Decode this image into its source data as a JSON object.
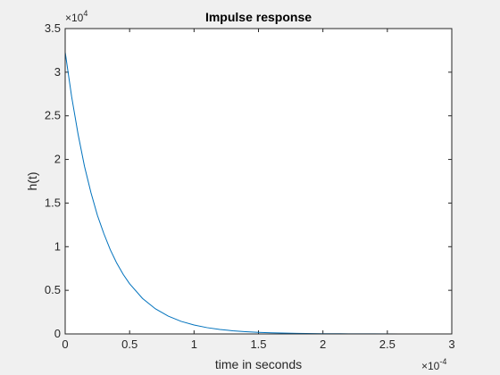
{
  "chart_data": {
    "type": "line",
    "title": "Impulse response",
    "xlabel": "time in seconds",
    "ylabel": "h(t)",
    "xlim": [
      0,
      0.0003
    ],
    "ylim": [
      0,
      35000
    ],
    "x_ticks": [
      0,
      5e-05,
      0.0001,
      0.00015,
      0.0002,
      0.00025,
      0.0003
    ],
    "x_tick_labels": [
      "0",
      "0.5",
      "1",
      "1.5",
      "2",
      "2.5",
      "3"
    ],
    "y_ticks": [
      0,
      5000,
      10000,
      15000,
      20000,
      25000,
      30000,
      35000
    ],
    "y_tick_labels": [
      "0",
      "0.5",
      "1",
      "1.5",
      "2",
      "2.5",
      "3",
      "3.5"
    ],
    "x_exponent": {
      "base": "×10",
      "power": "-4"
    },
    "y_exponent": {
      "base": "×10",
      "power": "4"
    },
    "grid": false,
    "series": [
      {
        "color": "#0072bd",
        "x": [
          0,
          5e-06,
          1e-05,
          1.5e-05,
          2e-05,
          2.5e-05,
          3e-05,
          3.5e-05,
          4e-05,
          4.5e-05,
          5e-05,
          6e-05,
          7e-05,
          8e-05,
          9e-05,
          0.0001,
          0.00011,
          0.00012,
          0.00013,
          0.00014,
          0.00015,
          0.00016,
          0.00018,
          0.0002,
          0.00022,
          0.00024,
          0.00026,
          0.00028,
          0.0003
        ],
        "y": [
          32300,
          27200,
          22900,
          19200,
          16200,
          13600,
          11500,
          9650,
          8120,
          6830,
          5750,
          4070,
          2880,
          2040,
          1440,
          1020,
          723,
          512,
          362,
          256,
          181,
          128,
          64,
          32,
          16,
          8,
          4,
          2,
          1
        ]
      }
    ]
  }
}
